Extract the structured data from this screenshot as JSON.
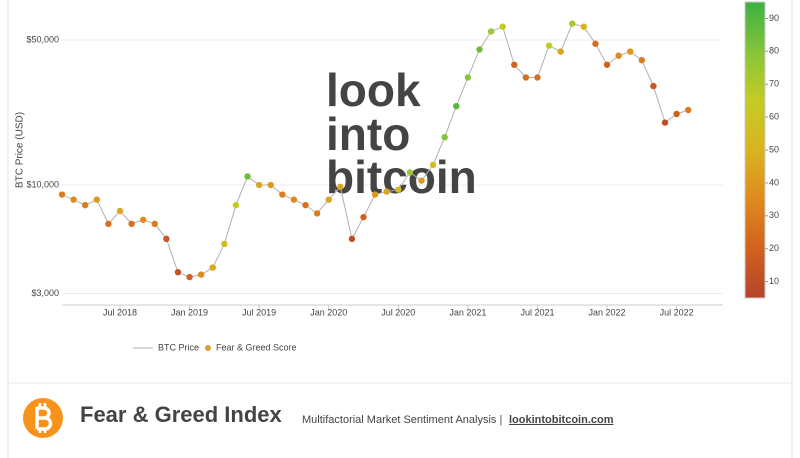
{
  "chart_data": {
    "type": "scatter",
    "y_label": "BTC Price (USD)",
    "watermark": [
      "look",
      "into",
      "bitcoin"
    ],
    "log_y": true,
    "grid": true,
    "x": [
      "2018-02",
      "2018-03",
      "2018-04",
      "2018-05",
      "2018-06",
      "2018-07",
      "2018-08",
      "2018-09",
      "2018-10",
      "2018-11",
      "2018-12",
      "2019-01",
      "2019-02",
      "2019-03",
      "2019-04",
      "2019-05",
      "2019-06",
      "2019-07",
      "2019-08",
      "2019-09",
      "2019-10",
      "2019-11",
      "2019-12",
      "2020-01",
      "2020-02",
      "2020-03",
      "2020-04",
      "2020-05",
      "2020-06",
      "2020-07",
      "2020-08",
      "2020-09",
      "2020-10",
      "2020-11",
      "2020-12",
      "2021-01",
      "2021-02",
      "2021-03",
      "2021-04",
      "2021-05",
      "2021-06",
      "2021-07",
      "2021-08",
      "2021-09",
      "2021-10",
      "2021-11",
      "2021-12",
      "2022-01",
      "2022-02",
      "2022-03",
      "2022-04",
      "2022-05",
      "2022-06",
      "2022-07",
      "2022-08"
    ],
    "series": [
      {
        "name": "BTC Price",
        "color": "#b0b0b0",
        "values": [
          9000,
          8500,
          8000,
          8500,
          6500,
          7500,
          6500,
          6800,
          6500,
          5500,
          3800,
          3600,
          3700,
          4000,
          5200,
          8000,
          11000,
          10000,
          10000,
          9000,
          8500,
          8000,
          7300,
          8500,
          9800,
          5500,
          7000,
          9000,
          9300,
          9500,
          11500,
          10500,
          12500,
          17000,
          24000,
          33000,
          45000,
          55000,
          58000,
          38000,
          33000,
          33000,
          47000,
          44000,
          60000,
          58000,
          48000,
          38000,
          42000,
          44000,
          40000,
          30000,
          20000,
          22000,
          23000
        ]
      },
      {
        "name": "Fear & Greed Score",
        "color": "#e0a030",
        "values": [
          30,
          35,
          30,
          40,
          25,
          45,
          25,
          35,
          30,
          15,
          12,
          20,
          35,
          45,
          55,
          65,
          85,
          45,
          40,
          30,
          35,
          25,
          30,
          45,
          45,
          10,
          20,
          40,
          45,
          55,
          75,
          40,
          55,
          80,
          90,
          80,
          85,
          75,
          65,
          20,
          25,
          25,
          65,
          45,
          70,
          50,
          25,
          20,
          35,
          40,
          30,
          15,
          10,
          20,
          30
        ]
      }
    ],
    "xlim": [
      "2018-02",
      "2022-11"
    ],
    "xticks": [
      {
        "value": "2018-07",
        "label": "Jul 2018"
      },
      {
        "value": "2019-01",
        "label": "Jan 2019"
      },
      {
        "value": "2019-07",
        "label": "Jul 2019"
      },
      {
        "value": "2020-01",
        "label": "Jan 2020"
      },
      {
        "value": "2020-07",
        "label": "Jul 2020"
      },
      {
        "value": "2021-01",
        "label": "Jan 2021"
      },
      {
        "value": "2021-07",
        "label": "Jul 2021"
      },
      {
        "value": "2022-01",
        "label": "Jan 2022"
      },
      {
        "value": "2022-07",
        "label": "Jul 2022"
      }
    ],
    "ylim": [
      2640,
      78000
    ],
    "yticks": [
      {
        "value": 3000,
        "label": "$3,000"
      },
      {
        "value": 10000,
        "label": "$10,000"
      },
      {
        "value": 50000,
        "label": "$50,000"
      }
    ],
    "colorbar": {
      "range": [
        5,
        95
      ],
      "ticks": [
        10,
        20,
        30,
        40,
        50,
        60,
        70,
        80,
        90
      ],
      "colors": [
        "#b5442a",
        "#d2611f",
        "#e08a1e",
        "#d9b41f",
        "#c4cc24",
        "#86c43a",
        "#3cb043"
      ]
    }
  },
  "footer": {
    "title": "Fear & Greed Index",
    "subtitle": "Multifactorial Market Sentiment Analysis |",
    "link": "lookintobitcoin.com"
  }
}
